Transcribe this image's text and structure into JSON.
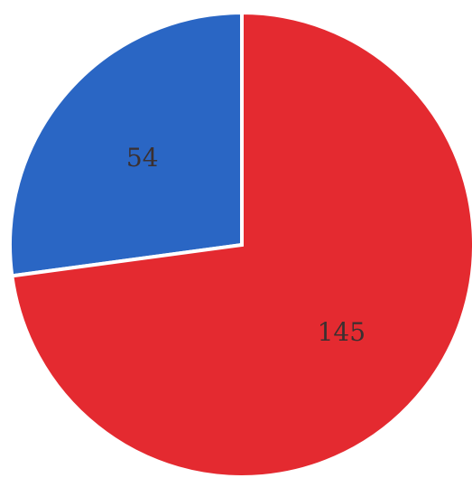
{
  "chart_data": {
    "type": "pie",
    "title": "",
    "slices": [
      {
        "label": "54",
        "value": 54,
        "color": "#2a66c4"
      },
      {
        "label": "145",
        "value": 145,
        "color": "#e42a30"
      }
    ],
    "start_angle_deg": 0,
    "direction": "counterclockwise",
    "legend": "none",
    "slice_border_color": "#ffffff"
  }
}
